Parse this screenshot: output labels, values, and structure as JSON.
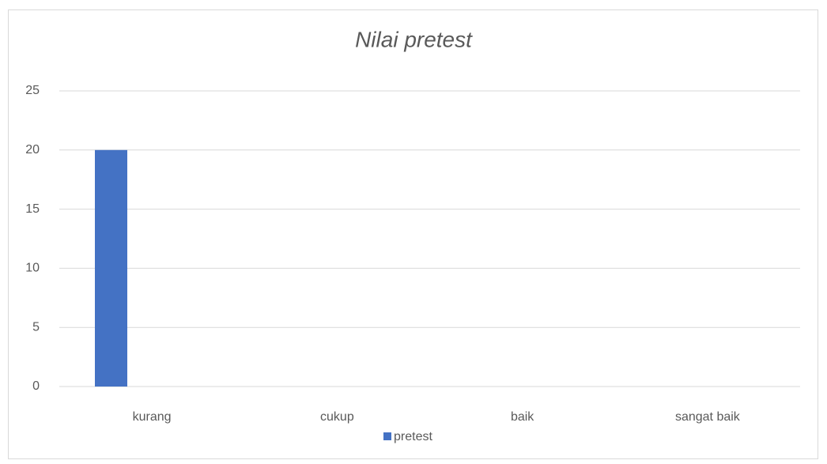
{
  "chart_data": {
    "type": "bar",
    "title": "Nilai pretest",
    "categories": [
      "kurang",
      "cukup",
      "baik",
      "sangat baik"
    ],
    "series": [
      {
        "name": "pretest",
        "color": "#4472c4",
        "values": [
          20,
          0,
          0,
          0
        ]
      }
    ],
    "ylim": [
      0,
      25
    ],
    "yticks": [
      0,
      5,
      10,
      15,
      20,
      25
    ],
    "grid": true,
    "legend": "bottom"
  }
}
